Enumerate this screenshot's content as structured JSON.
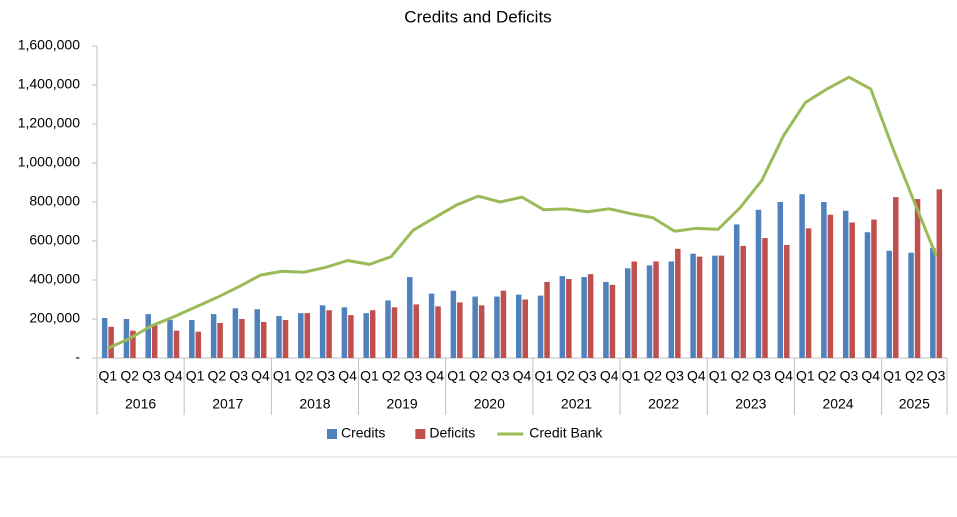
{
  "chart_data": {
    "type": "bar-line",
    "title": "Credits and Deficits",
    "categories": [
      "Q1",
      "Q2",
      "Q3",
      "Q4",
      "Q1",
      "Q2",
      "Q3",
      "Q4",
      "Q1",
      "Q2",
      "Q3",
      "Q4",
      "Q1",
      "Q2",
      "Q3",
      "Q4",
      "Q1",
      "Q2",
      "Q3",
      "Q4",
      "Q1",
      "Q2",
      "Q3",
      "Q4",
      "Q1",
      "Q2",
      "Q3",
      "Q4",
      "Q1",
      "Q2",
      "Q3",
      "Q4",
      "Q1",
      "Q2",
      "Q3",
      "Q4",
      "Q1",
      "Q2",
      "Q3"
    ],
    "category_groups": [
      "2016",
      "2017",
      "2018",
      "2019",
      "2020",
      "2021",
      "2022",
      "2023",
      "2024",
      "2025"
    ],
    "series": [
      {
        "name": "Credits",
        "type": "bar",
        "color": "#4f81bd",
        "values": [
          205000,
          200000,
          225000,
          195000,
          195000,
          225000,
          255000,
          250000,
          215000,
          230000,
          270000,
          260000,
          230000,
          295000,
          415000,
          330000,
          345000,
          315000,
          315000,
          325000,
          320000,
          420000,
          415000,
          390000,
          460000,
          475000,
          495000,
          535000,
          525000,
          685000,
          760000,
          800000,
          840000,
          800000,
          755000,
          645000,
          550000,
          540000,
          565000
        ]
      },
      {
        "name": "Deficits",
        "type": "bar",
        "color": "#c0504d",
        "values": [
          160000,
          140000,
          170000,
          140000,
          135000,
          180000,
          200000,
          185000,
          195000,
          230000,
          245000,
          220000,
          245000,
          260000,
          275000,
          265000,
          285000,
          270000,
          345000,
          300000,
          390000,
          405000,
          430000,
          375000,
          495000,
          495000,
          560000,
          520000,
          525000,
          575000,
          615000,
          580000,
          665000,
          735000,
          695000,
          710000,
          825000,
          815000,
          865000
        ]
      },
      {
        "name": "Credit Bank",
        "type": "line",
        "color": "#9bbb59",
        "values": [
          50000,
          100000,
          165000,
          210000,
          260000,
          310000,
          365000,
          425000,
          445000,
          440000,
          465000,
          500000,
          480000,
          520000,
          655000,
          720000,
          785000,
          830000,
          800000,
          825000,
          760000,
          765000,
          750000,
          765000,
          740000,
          720000,
          650000,
          665000,
          660000,
          770000,
          910000,
          1140000,
          1310000,
          1380000,
          1440000,
          1380000,
          1080000,
          800000,
          525000
        ]
      }
    ],
    "ylim": [
      0,
      1600000
    ],
    "yticks": [
      {
        "value": 0,
        "label": "-"
      },
      {
        "value": 200000,
        "label": "200,000"
      },
      {
        "value": 400000,
        "label": "400,000"
      },
      {
        "value": 600000,
        "label": "600,000"
      },
      {
        "value": 800000,
        "label": "800,000"
      },
      {
        "value": 1000000,
        "label": "1,000,000"
      },
      {
        "value": 1200000,
        "label": "1,200,000"
      },
      {
        "value": 1400000,
        "label": "1,400,000"
      },
      {
        "value": 1600000,
        "label": "1,600,000"
      }
    ],
    "legend": "bottom"
  }
}
